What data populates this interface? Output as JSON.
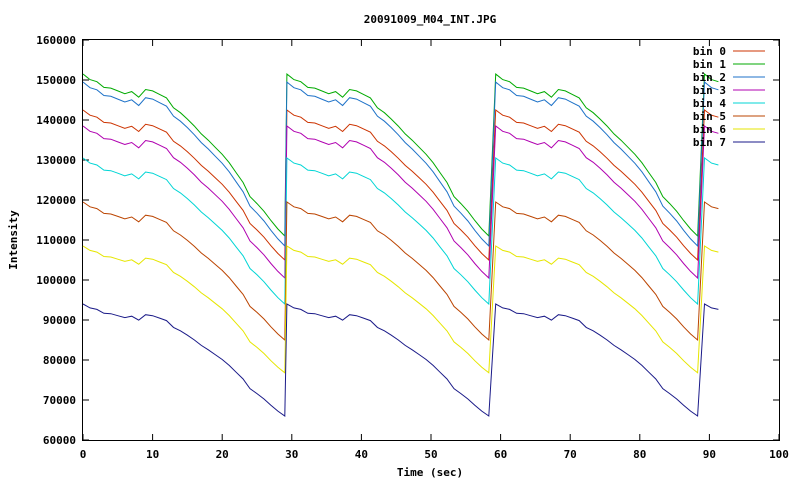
{
  "chart_data": {
    "type": "line",
    "title": "20091009_M04_INT.JPG",
    "xlabel": "Time (sec)",
    "ylabel": "Intensity",
    "xlim": [
      0,
      100
    ],
    "ylim": [
      60000,
      160000
    ],
    "x_ticks": [
      0,
      10,
      20,
      30,
      40,
      50,
      60,
      70,
      80,
      90,
      100
    ],
    "y_ticks": [
      60000,
      70000,
      80000,
      90000,
      100000,
      110000,
      120000,
      130000,
      140000,
      150000,
      160000
    ],
    "grid": false,
    "legend_position": "top-right",
    "cycle": {
      "t": [
        0,
        0.5,
        1,
        2,
        3,
        4,
        5,
        6,
        7,
        8,
        9,
        10,
        11,
        12,
        13,
        14,
        15,
        16,
        17,
        18,
        19,
        20,
        21,
        22,
        23,
        24,
        25,
        26,
        27,
        28,
        29
      ],
      "profile": [
        1.0,
        0.992,
        0.984,
        0.978,
        0.962,
        0.96,
        0.952,
        0.944,
        0.95,
        0.934,
        0.956,
        0.952,
        0.942,
        0.932,
        0.904,
        0.89,
        0.872,
        0.852,
        0.83,
        0.812,
        0.792,
        0.772,
        0.748,
        0.72,
        0.692,
        0.652,
        0.632,
        0.61,
        0.584,
        0.56,
        0.54
      ]
    },
    "cycle_starts": [
      0,
      29.3,
      59.3,
      89.3
    ],
    "end_x": 92,
    "series": [
      {
        "name": "bin 0",
        "color": "#cc3300",
        "start": 142500,
        "min": 105000
      },
      {
        "name": "bin 1",
        "color": "#00aa00",
        "start": 151500,
        "min": 111000
      },
      {
        "name": "bin 2",
        "color": "#1e72c8",
        "start": 149500,
        "min": 108500
      },
      {
        "name": "bin 3",
        "color": "#b000b0",
        "start": 138500,
        "min": 100500
      },
      {
        "name": "bin 4",
        "color": "#00d5d5",
        "start": 130500,
        "min": 94000
      },
      {
        "name": "bin 5",
        "color": "#bb4400",
        "start": 119500,
        "min": 85000
      },
      {
        "name": "bin 6",
        "color": "#e6e600",
        "start": 108500,
        "min": 76800
      },
      {
        "name": "bin 7",
        "color": "#1a1a88",
        "start": 94000,
        "min": 66000
      }
    ]
  }
}
